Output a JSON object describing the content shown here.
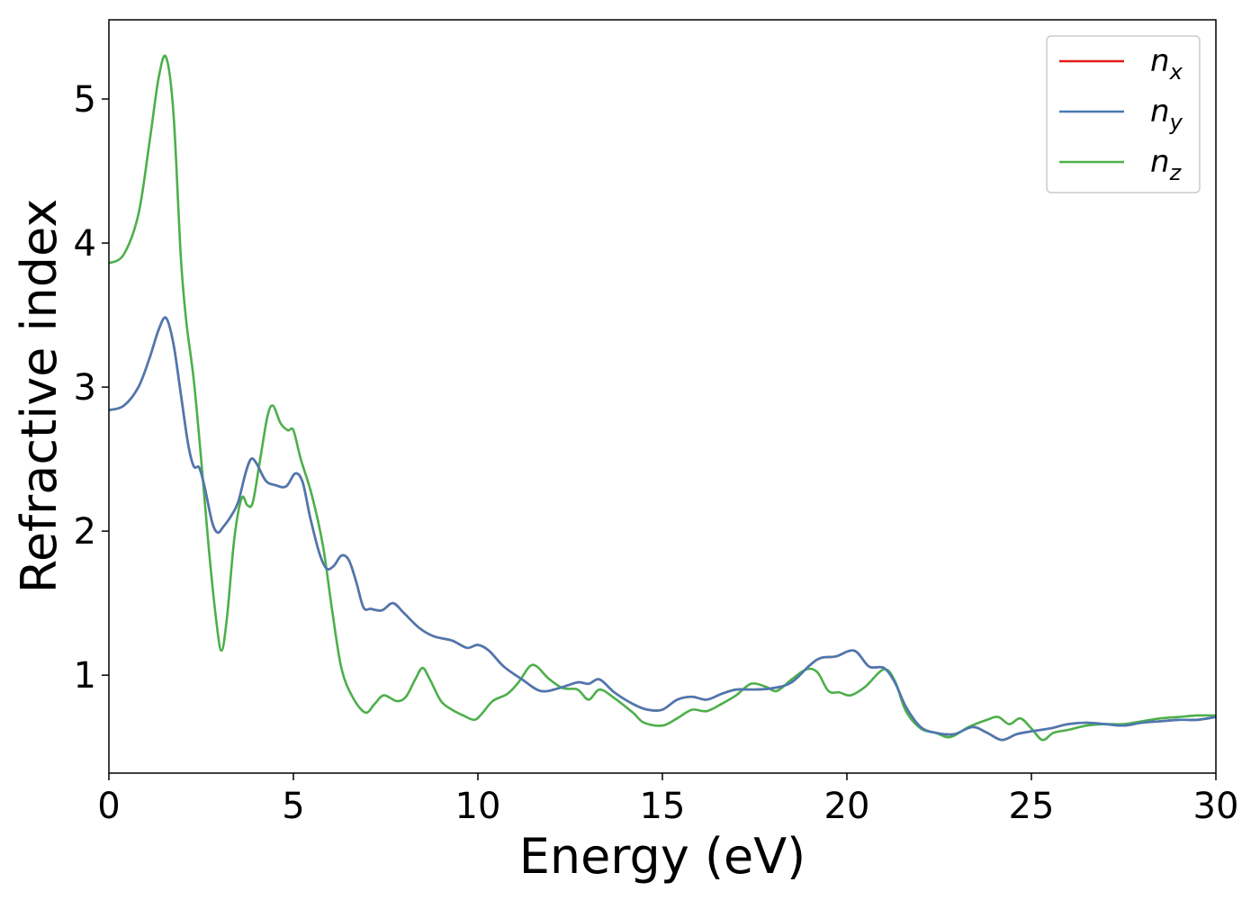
{
  "chart_data": {
    "type": "line",
    "title": "",
    "xlabel": "Energy (eV)",
    "ylabel": "Refractive index",
    "xlim": [
      0,
      30
    ],
    "ylim": [
      0.32,
      5.55
    ],
    "xticks": [
      0,
      5,
      10,
      15,
      20,
      25,
      30
    ],
    "yticks": [
      1,
      2,
      3,
      4,
      5
    ],
    "grid": false,
    "legend_position": "top-right",
    "series": [
      {
        "name": "n_x",
        "legend_base": "n",
        "legend_sub": "x",
        "color": "#e41a1c",
        "points": [
          [
            0,
            2.84
          ],
          [
            0.4,
            2.87
          ],
          [
            0.8,
            3.0
          ],
          [
            1.1,
            3.2
          ],
          [
            1.35,
            3.4
          ],
          [
            1.55,
            3.48
          ],
          [
            1.75,
            3.3
          ],
          [
            1.95,
            2.95
          ],
          [
            2.15,
            2.6
          ],
          [
            2.3,
            2.45
          ],
          [
            2.45,
            2.44
          ],
          [
            2.6,
            2.3
          ],
          [
            2.8,
            2.06
          ],
          [
            2.95,
            1.99
          ],
          [
            3.1,
            2.03
          ],
          [
            3.3,
            2.1
          ],
          [
            3.5,
            2.2
          ],
          [
            3.7,
            2.4
          ],
          [
            3.85,
            2.5
          ],
          [
            4.0,
            2.47
          ],
          [
            4.25,
            2.35
          ],
          [
            4.5,
            2.32
          ],
          [
            4.8,
            2.31
          ],
          [
            5.05,
            2.4
          ],
          [
            5.25,
            2.34
          ],
          [
            5.45,
            2.1
          ],
          [
            5.7,
            1.85
          ],
          [
            5.9,
            1.74
          ],
          [
            6.1,
            1.76
          ],
          [
            6.3,
            1.83
          ],
          [
            6.5,
            1.8
          ],
          [
            6.7,
            1.65
          ],
          [
            6.9,
            1.47
          ],
          [
            7.1,
            1.46
          ],
          [
            7.4,
            1.45
          ],
          [
            7.7,
            1.5
          ],
          [
            8.0,
            1.43
          ],
          [
            8.4,
            1.33
          ],
          [
            8.8,
            1.27
          ],
          [
            9.3,
            1.24
          ],
          [
            9.7,
            1.19
          ],
          [
            10.0,
            1.21
          ],
          [
            10.3,
            1.17
          ],
          [
            10.7,
            1.06
          ],
          [
            11.2,
            0.97
          ],
          [
            11.7,
            0.89
          ],
          [
            12.2,
            0.91
          ],
          [
            12.7,
            0.95
          ],
          [
            13.0,
            0.94
          ],
          [
            13.3,
            0.97
          ],
          [
            13.7,
            0.88
          ],
          [
            14.2,
            0.8
          ],
          [
            14.6,
            0.76
          ],
          [
            15.0,
            0.76
          ],
          [
            15.4,
            0.83
          ],
          [
            15.8,
            0.85
          ],
          [
            16.2,
            0.83
          ],
          [
            16.6,
            0.87
          ],
          [
            17.0,
            0.9
          ],
          [
            17.5,
            0.9
          ],
          [
            18.0,
            0.91
          ],
          [
            18.5,
            0.95
          ],
          [
            19.0,
            1.07
          ],
          [
            19.3,
            1.12
          ],
          [
            19.7,
            1.13
          ],
          [
            20.2,
            1.17
          ],
          [
            20.6,
            1.06
          ],
          [
            21.0,
            1.05
          ],
          [
            21.3,
            0.95
          ],
          [
            21.6,
            0.78
          ],
          [
            22.0,
            0.64
          ],
          [
            22.4,
            0.6
          ],
          [
            22.9,
            0.59
          ],
          [
            23.4,
            0.64
          ],
          [
            23.8,
            0.6
          ],
          [
            24.2,
            0.55
          ],
          [
            24.6,
            0.59
          ],
          [
            25.0,
            0.61
          ],
          [
            25.5,
            0.63
          ],
          [
            26.0,
            0.66
          ],
          [
            26.5,
            0.67
          ],
          [
            27.0,
            0.66
          ],
          [
            27.5,
            0.65
          ],
          [
            28.0,
            0.67
          ],
          [
            28.5,
            0.68
          ],
          [
            29.0,
            0.69
          ],
          [
            29.5,
            0.69
          ],
          [
            30.0,
            0.71
          ]
        ]
      },
      {
        "name": "n_y",
        "legend_base": "n",
        "legend_sub": "y",
        "color": "#4a79b2",
        "points": [
          [
            0,
            2.84
          ],
          [
            0.4,
            2.87
          ],
          [
            0.8,
            3.0
          ],
          [
            1.1,
            3.2
          ],
          [
            1.35,
            3.4
          ],
          [
            1.55,
            3.48
          ],
          [
            1.75,
            3.3
          ],
          [
            1.95,
            2.95
          ],
          [
            2.15,
            2.6
          ],
          [
            2.3,
            2.45
          ],
          [
            2.45,
            2.44
          ],
          [
            2.6,
            2.3
          ],
          [
            2.8,
            2.06
          ],
          [
            2.95,
            1.99
          ],
          [
            3.1,
            2.03
          ],
          [
            3.3,
            2.1
          ],
          [
            3.5,
            2.2
          ],
          [
            3.7,
            2.4
          ],
          [
            3.85,
            2.5
          ],
          [
            4.0,
            2.47
          ],
          [
            4.25,
            2.35
          ],
          [
            4.5,
            2.32
          ],
          [
            4.8,
            2.31
          ],
          [
            5.05,
            2.4
          ],
          [
            5.25,
            2.34
          ],
          [
            5.45,
            2.1
          ],
          [
            5.7,
            1.85
          ],
          [
            5.9,
            1.74
          ],
          [
            6.1,
            1.76
          ],
          [
            6.3,
            1.83
          ],
          [
            6.5,
            1.8
          ],
          [
            6.7,
            1.65
          ],
          [
            6.9,
            1.47
          ],
          [
            7.1,
            1.46
          ],
          [
            7.4,
            1.45
          ],
          [
            7.7,
            1.5
          ],
          [
            8.0,
            1.43
          ],
          [
            8.4,
            1.33
          ],
          [
            8.8,
            1.27
          ],
          [
            9.3,
            1.24
          ],
          [
            9.7,
            1.19
          ],
          [
            10.0,
            1.21
          ],
          [
            10.3,
            1.17
          ],
          [
            10.7,
            1.06
          ],
          [
            11.2,
            0.97
          ],
          [
            11.7,
            0.89
          ],
          [
            12.2,
            0.91
          ],
          [
            12.7,
            0.95
          ],
          [
            13.0,
            0.94
          ],
          [
            13.3,
            0.97
          ],
          [
            13.7,
            0.88
          ],
          [
            14.2,
            0.8
          ],
          [
            14.6,
            0.76
          ],
          [
            15.0,
            0.76
          ],
          [
            15.4,
            0.83
          ],
          [
            15.8,
            0.85
          ],
          [
            16.2,
            0.83
          ],
          [
            16.6,
            0.87
          ],
          [
            17.0,
            0.9
          ],
          [
            17.5,
            0.9
          ],
          [
            18.0,
            0.91
          ],
          [
            18.5,
            0.95
          ],
          [
            19.0,
            1.07
          ],
          [
            19.3,
            1.12
          ],
          [
            19.7,
            1.13
          ],
          [
            20.2,
            1.17
          ],
          [
            20.6,
            1.06
          ],
          [
            21.0,
            1.05
          ],
          [
            21.3,
            0.95
          ],
          [
            21.6,
            0.78
          ],
          [
            22.0,
            0.64
          ],
          [
            22.4,
            0.6
          ],
          [
            22.9,
            0.59
          ],
          [
            23.4,
            0.64
          ],
          [
            23.8,
            0.6
          ],
          [
            24.2,
            0.55
          ],
          [
            24.6,
            0.59
          ],
          [
            25.0,
            0.61
          ],
          [
            25.5,
            0.63
          ],
          [
            26.0,
            0.66
          ],
          [
            26.5,
            0.67
          ],
          [
            27.0,
            0.66
          ],
          [
            27.5,
            0.65
          ],
          [
            28.0,
            0.67
          ],
          [
            28.5,
            0.68
          ],
          [
            29.0,
            0.69
          ],
          [
            29.5,
            0.69
          ],
          [
            30.0,
            0.71
          ]
        ]
      },
      {
        "name": "n_z",
        "legend_base": "n",
        "legend_sub": "z",
        "color": "#4daf4a",
        "points": [
          [
            0,
            3.86
          ],
          [
            0.4,
            3.92
          ],
          [
            0.8,
            4.2
          ],
          [
            1.1,
            4.7
          ],
          [
            1.35,
            5.15
          ],
          [
            1.55,
            5.29
          ],
          [
            1.75,
            4.9
          ],
          [
            1.95,
            3.9
          ],
          [
            2.1,
            3.45
          ],
          [
            2.3,
            3.05
          ],
          [
            2.5,
            2.5
          ],
          [
            2.7,
            1.9
          ],
          [
            2.9,
            1.4
          ],
          [
            3.05,
            1.17
          ],
          [
            3.2,
            1.4
          ],
          [
            3.4,
            1.95
          ],
          [
            3.6,
            2.23
          ],
          [
            3.75,
            2.18
          ],
          [
            3.9,
            2.2
          ],
          [
            4.1,
            2.5
          ],
          [
            4.3,
            2.8
          ],
          [
            4.45,
            2.87
          ],
          [
            4.65,
            2.75
          ],
          [
            4.85,
            2.7
          ],
          [
            5.0,
            2.7
          ],
          [
            5.2,
            2.5
          ],
          [
            5.5,
            2.25
          ],
          [
            5.8,
            1.9
          ],
          [
            6.05,
            1.45
          ],
          [
            6.3,
            1.05
          ],
          [
            6.6,
            0.85
          ],
          [
            6.95,
            0.74
          ],
          [
            7.2,
            0.8
          ],
          [
            7.45,
            0.86
          ],
          [
            7.8,
            0.82
          ],
          [
            8.05,
            0.85
          ],
          [
            8.3,
            0.97
          ],
          [
            8.5,
            1.05
          ],
          [
            8.7,
            0.97
          ],
          [
            9.0,
            0.82
          ],
          [
            9.3,
            0.76
          ],
          [
            9.6,
            0.72
          ],
          [
            9.9,
            0.69
          ],
          [
            10.1,
            0.73
          ],
          [
            10.4,
            0.82
          ],
          [
            10.8,
            0.87
          ],
          [
            11.1,
            0.95
          ],
          [
            11.4,
            1.06
          ],
          [
            11.6,
            1.06
          ],
          [
            11.9,
            0.98
          ],
          [
            12.3,
            0.91
          ],
          [
            12.7,
            0.9
          ],
          [
            13.0,
            0.83
          ],
          [
            13.3,
            0.9
          ],
          [
            13.7,
            0.84
          ],
          [
            14.2,
            0.74
          ],
          [
            14.5,
            0.67
          ],
          [
            15.0,
            0.65
          ],
          [
            15.4,
            0.7
          ],
          [
            15.8,
            0.76
          ],
          [
            16.2,
            0.75
          ],
          [
            16.6,
            0.8
          ],
          [
            17.0,
            0.86
          ],
          [
            17.4,
            0.94
          ],
          [
            17.8,
            0.92
          ],
          [
            18.1,
            0.89
          ],
          [
            18.5,
            0.97
          ],
          [
            18.9,
            1.04
          ],
          [
            19.2,
            1.02
          ],
          [
            19.5,
            0.89
          ],
          [
            19.8,
            0.88
          ],
          [
            20.1,
            0.86
          ],
          [
            20.5,
            0.92
          ],
          [
            21.0,
            1.04
          ],
          [
            21.3,
            0.96
          ],
          [
            21.6,
            0.75
          ],
          [
            22.0,
            0.63
          ],
          [
            22.4,
            0.6
          ],
          [
            22.8,
            0.57
          ],
          [
            23.3,
            0.64
          ],
          [
            23.8,
            0.69
          ],
          [
            24.1,
            0.71
          ],
          [
            24.4,
            0.66
          ],
          [
            24.7,
            0.7
          ],
          [
            25.0,
            0.63
          ],
          [
            25.3,
            0.55
          ],
          [
            25.6,
            0.6
          ],
          [
            26.0,
            0.62
          ],
          [
            26.5,
            0.65
          ],
          [
            27.0,
            0.66
          ],
          [
            27.5,
            0.66
          ],
          [
            28.0,
            0.68
          ],
          [
            28.5,
            0.7
          ],
          [
            29.0,
            0.71
          ],
          [
            29.5,
            0.72
          ],
          [
            30.0,
            0.72
          ]
        ]
      }
    ]
  }
}
